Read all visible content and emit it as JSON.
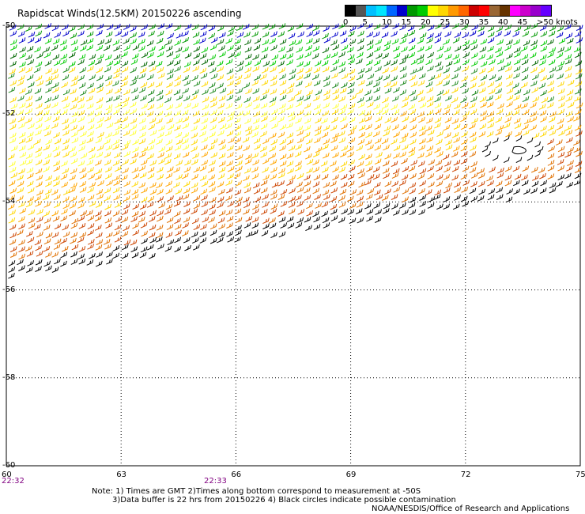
{
  "title": "Rapidscat Winds(12.5KM) 20150226 ascending",
  "legend": {
    "colors": [
      "#000000",
      "#555555",
      "#00bfff",
      "#00e5ff",
      "#0066ff",
      "#0000cc",
      "#009900",
      "#00cc00",
      "#ffff00",
      "#ffd700",
      "#ff9900",
      "#ff6600",
      "#cc0000",
      "#ff0000",
      "#996633",
      "#663300",
      "#ff00ff",
      "#cc00cc",
      "#9900cc",
      "#6600ff"
    ],
    "labels": [
      "0",
      "5",
      "10",
      "15",
      "20",
      "25",
      "30",
      "35",
      "40",
      "45",
      ">50 knots"
    ]
  },
  "latitudes": [
    "-50",
    "-52",
    "-54",
    "-56",
    "-58",
    "-60"
  ],
  "longitudes": [
    "60",
    "63",
    "66",
    "69",
    "72",
    "75"
  ],
  "times": [
    "22:32",
    "22:33"
  ],
  "notes": {
    "line1": "Note: 1) Times are GMT 2)Times along bottom correspond to measurement at -50S",
    "line2": "3)Data buffer is 22 hrs from 20150226 4) Black circles indicate possible contamination",
    "credit": "NOAA/NESDIS/Office of Research and Applications"
  }
}
